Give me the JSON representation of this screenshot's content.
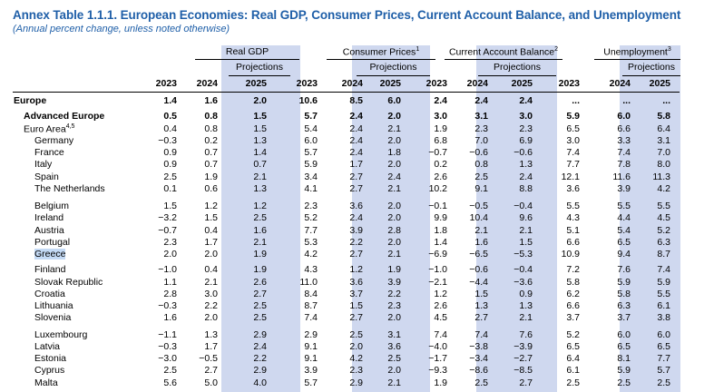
{
  "title": "Annex Table 1.1.1. European Economies: Real GDP, Consumer Prices, Current Account Balance, and Unemployment",
  "subtitle": "(Annual percent change, unless noted otherwise)",
  "colors": {
    "title": "#1f5fa8",
    "shade": "#cfd8ef",
    "highlight": "#c4daf5"
  },
  "groups": [
    {
      "label": "Real GDP",
      "sup": ""
    },
    {
      "label": "Consumer Prices",
      "sup": "1"
    },
    {
      "label": "Current Account Balance",
      "sup": "2"
    },
    {
      "label": "Unemployment",
      "sup": "3"
    }
  ],
  "projections_label": "Projections",
  "years": [
    "2023",
    "2024",
    "2025"
  ],
  "rows": [
    {
      "label": "Europe",
      "sup": "",
      "values": [
        "1.4",
        "1.6",
        "2.0",
        "10.6",
        "8.5",
        "6.0",
        "2.4",
        "2.4",
        "2.4",
        "...",
        "...",
        "..."
      ]
    },
    {
      "label": "Advanced Europe",
      "sup": "",
      "values": [
        "0.5",
        "0.8",
        "1.5",
        "5.7",
        "2.4",
        "2.0",
        "3.0",
        "3.1",
        "3.0",
        "5.9",
        "6.0",
        "5.8"
      ]
    },
    {
      "label": "Euro Area",
      "sup": "4,5",
      "values": [
        "0.4",
        "0.8",
        "1.5",
        "5.4",
        "2.4",
        "2.1",
        "1.9",
        "2.3",
        "2.3",
        "6.5",
        "6.6",
        "6.4"
      ]
    },
    {
      "label": "Germany",
      "sup": "",
      "values": [
        "−0.3",
        "0.2",
        "1.3",
        "6.0",
        "2.4",
        "2.0",
        "6.8",
        "7.0",
        "6.9",
        "3.0",
        "3.3",
        "3.1"
      ]
    },
    {
      "label": "France",
      "sup": "",
      "values": [
        "0.9",
        "0.7",
        "1.4",
        "5.7",
        "2.4",
        "1.8",
        "−0.7",
        "−0.6",
        "−0.6",
        "7.4",
        "7.4",
        "7.0"
      ]
    },
    {
      "label": "Italy",
      "sup": "",
      "values": [
        "0.9",
        "0.7",
        "0.7",
        "5.9",
        "1.7",
        "2.0",
        "0.2",
        "0.8",
        "1.3",
        "7.7",
        "7.8",
        "8.0"
      ]
    },
    {
      "label": "Spain",
      "sup": "",
      "values": [
        "2.5",
        "1.9",
        "2.1",
        "3.4",
        "2.7",
        "2.4",
        "2.6",
        "2.5",
        "2.4",
        "12.1",
        "11.6",
        "11.3"
      ]
    },
    {
      "label": "The Netherlands",
      "sup": "",
      "values": [
        "0.1",
        "0.6",
        "1.3",
        "4.1",
        "2.7",
        "2.1",
        "10.2",
        "9.1",
        "8.8",
        "3.6",
        "3.9",
        "4.2"
      ]
    },
    {
      "label": "Belgium",
      "sup": "",
      "values": [
        "1.5",
        "1.2",
        "1.2",
        "2.3",
        "3.6",
        "2.0",
        "−0.1",
        "−0.5",
        "−0.4",
        "5.5",
        "5.5",
        "5.5"
      ]
    },
    {
      "label": "Ireland",
      "sup": "",
      "values": [
        "−3.2",
        "1.5",
        "2.5",
        "5.2",
        "2.4",
        "2.0",
        "9.9",
        "10.4",
        "9.6",
        "4.3",
        "4.4",
        "4.5"
      ]
    },
    {
      "label": "Austria",
      "sup": "",
      "values": [
        "−0.7",
        "0.4",
        "1.6",
        "7.7",
        "3.9",
        "2.8",
        "1.8",
        "2.1",
        "2.1",
        "5.1",
        "5.4",
        "5.2"
      ]
    },
    {
      "label": "Portugal",
      "sup": "",
      "values": [
        "2.3",
        "1.7",
        "2.1",
        "5.3",
        "2.2",
        "2.0",
        "1.4",
        "1.6",
        "1.5",
        "6.6",
        "6.5",
        "6.3"
      ]
    },
    {
      "label": "Greece",
      "sup": "",
      "values": [
        "2.0",
        "2.0",
        "1.9",
        "4.2",
        "2.7",
        "2.1",
        "−6.9",
        "−6.5",
        "−5.3",
        "10.9",
        "9.4",
        "8.7"
      ]
    },
    {
      "label": "Finland",
      "sup": "",
      "values": [
        "−1.0",
        "0.4",
        "1.9",
        "4.3",
        "1.2",
        "1.9",
        "−1.0",
        "−0.6",
        "−0.4",
        "7.2",
        "7.6",
        "7.4"
      ]
    },
    {
      "label": "Slovak Republic",
      "sup": "",
      "values": [
        "1.1",
        "2.1",
        "2.6",
        "11.0",
        "3.6",
        "3.9",
        "−2.1",
        "−4.4",
        "−3.6",
        "5.8",
        "5.9",
        "5.9"
      ]
    },
    {
      "label": "Croatia",
      "sup": "",
      "values": [
        "2.8",
        "3.0",
        "2.7",
        "8.4",
        "3.7",
        "2.2",
        "1.2",
        "1.5",
        "0.9",
        "6.2",
        "5.8",
        "5.5"
      ]
    },
    {
      "label": "Lithuania",
      "sup": "",
      "values": [
        "−0.3",
        "2.2",
        "2.5",
        "8.7",
        "1.5",
        "2.3",
        "2.6",
        "1.3",
        "1.3",
        "6.6",
        "6.3",
        "6.1"
      ]
    },
    {
      "label": "Slovenia",
      "sup": "",
      "values": [
        "1.6",
        "2.0",
        "2.5",
        "7.4",
        "2.7",
        "2.0",
        "4.5",
        "2.7",
        "2.1",
        "3.7",
        "3.7",
        "3.8"
      ]
    },
    {
      "label": "Luxembourg",
      "sup": "",
      "values": [
        "−1.1",
        "1.3",
        "2.9",
        "2.9",
        "2.5",
        "3.1",
        "7.4",
        "7.4",
        "7.6",
        "5.2",
        "6.0",
        "6.0"
      ]
    },
    {
      "label": "Latvia",
      "sup": "",
      "values": [
        "−0.3",
        "1.7",
        "2.4",
        "9.1",
        "2.0",
        "3.6",
        "−4.0",
        "−3.8",
        "−3.9",
        "6.5",
        "6.5",
        "6.5"
      ]
    },
    {
      "label": "Estonia",
      "sup": "",
      "values": [
        "−3.0",
        "−0.5",
        "2.2",
        "9.1",
        "4.2",
        "2.5",
        "−1.7",
        "−3.4",
        "−2.7",
        "6.4",
        "8.1",
        "7.7"
      ]
    },
    {
      "label": "Cyprus",
      "sup": "",
      "values": [
        "2.5",
        "2.7",
        "2.9",
        "3.9",
        "2.3",
        "2.0",
        "−9.3",
        "−8.6",
        "−8.5",
        "6.1",
        "5.9",
        "5.7"
      ]
    },
    {
      "label": "Malta",
      "sup": "",
      "values": [
        "5.6",
        "5.0",
        "4.0",
        "5.7",
        "2.9",
        "2.1",
        "1.9",
        "2.5",
        "2.7",
        "2.5",
        "2.5",
        "2.5"
      ]
    }
  ]
}
